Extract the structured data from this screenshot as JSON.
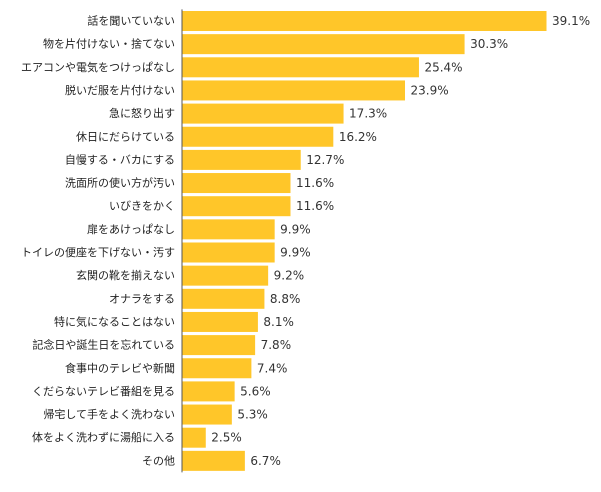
{
  "chart_data": {
    "type": "bar",
    "orientation": "horizontal",
    "title": "",
    "xlabel": "",
    "ylabel": "",
    "unit": "%",
    "xlim": [
      0,
      40
    ],
    "grid": false,
    "legend": "none",
    "bar_color": "#FFC629",
    "axis_color": "#555555",
    "categories": [
      "話を聞いていない",
      "物を片付けない・捨てない",
      "エアコンや電気をつけっぱなし",
      "脱いだ服を片付けない",
      "急に怒り出す",
      "休日にだらけている",
      "自慢する・バカにする",
      "洗面所の使い方が汚い",
      "いびきをかく",
      "扉をあけっぱなし",
      "トイレの便座を下げない・汚す",
      "玄関の靴を揃えない",
      "オナラをする",
      "特に気になることはない",
      "記念日や誕生日を忘れている",
      "食事中のテレビや新聞",
      "くだらないテレビ番組を見る",
      "帰宅して手をよく洗わない",
      "体をよく洗わずに湯船に入る",
      "その他"
    ],
    "values": [
      39.1,
      30.3,
      25.4,
      23.9,
      17.3,
      16.2,
      12.7,
      11.6,
      11.6,
      9.9,
      9.9,
      9.2,
      8.8,
      8.1,
      7.8,
      7.4,
      5.6,
      5.3,
      2.5,
      6.7
    ],
    "value_labels": [
      "39.1%",
      "30.3%",
      "25.4%",
      "23.9%",
      "17.3%",
      "16.2%",
      "12.7%",
      "11.6%",
      "11.6%",
      "9.9%",
      "9.9%",
      "9.2%",
      "8.8%",
      "8.1%",
      "7.8%",
      "7.4%",
      "5.6%",
      "5.3%",
      "2.5%",
      "6.7%"
    ]
  }
}
